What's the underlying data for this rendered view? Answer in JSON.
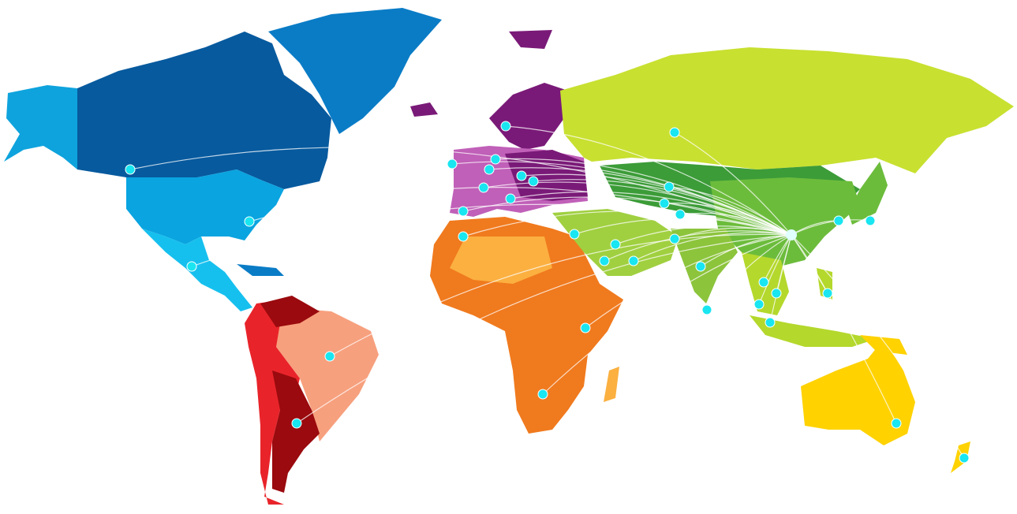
{
  "map": {
    "type": "world-connection-map",
    "hub": "east-china",
    "colors": {
      "alaska": "#0ea3dd",
      "canada": "#075a9e",
      "greenland": "#0a7cc6",
      "usa": "#0aa4e0",
      "mexico_central_america": "#16c0ee",
      "south_america_light": "#f7a07e",
      "south_america_red": "#e8242a",
      "south_america_dark": "#9a0a0e",
      "europe": "#7a1a78",
      "europe_light": "#c060b8",
      "africa": "#f07a1e",
      "africa_light": "#fbb040",
      "russia": "#c8e030",
      "central_asia": "#3c9c38",
      "middle_east": "#a0d040",
      "south_asia": "#8cc43c",
      "southeast_asia": "#b4d82c",
      "australia": "#ffd200",
      "marker": "#19e6f0",
      "route": "#ffffff"
    }
  }
}
